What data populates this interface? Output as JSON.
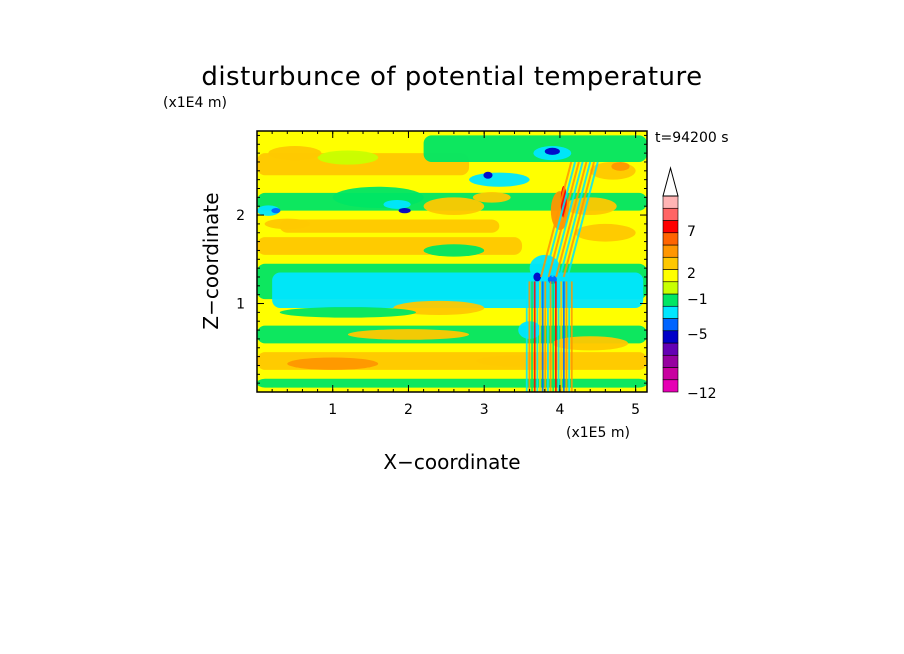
{
  "chart_data": {
    "type": "heatmap",
    "title": "disturbunce of potential temperature",
    "xlabel": "X−coordinate",
    "ylabel": "Z−coordinate",
    "x_unit": "(x1E5 m)",
    "y_unit": "(x1E4 m)",
    "time_label": "t=94200 s",
    "xlim": [
      0,
      5.15
    ],
    "ylim": [
      0,
      2.95
    ],
    "x_ticks": [
      1,
      2,
      3,
      4,
      5
    ],
    "y_ticks": [
      1,
      2
    ],
    "colorbar": {
      "tick_labels": [
        "7",
        "2",
        "−1",
        "−5",
        "−12"
      ],
      "colors": [
        "#e600b4",
        "#c800a0",
        "#9600a0",
        "#6400b4",
        "#0000c8",
        "#0064ff",
        "#00e6ff",
        "#00e664",
        "#c8ff00",
        "#ffff00",
        "#ffc800",
        "#ff9600",
        "#ff6400",
        "#ff0000",
        "#ff6464",
        "#ffb4b4"
      ]
    },
    "field_colors": {
      "background": "#ffff00",
      "warm1": "#ffc800",
      "warm2": "#ff9600",
      "warm3": "#ff6400",
      "hot": "#ff0000",
      "cool1": "#c8ff00",
      "cool2": "#00e664",
      "cool3": "#00e6ff",
      "cold": "#0064ff",
      "coldest": "#0000c8"
    }
  }
}
